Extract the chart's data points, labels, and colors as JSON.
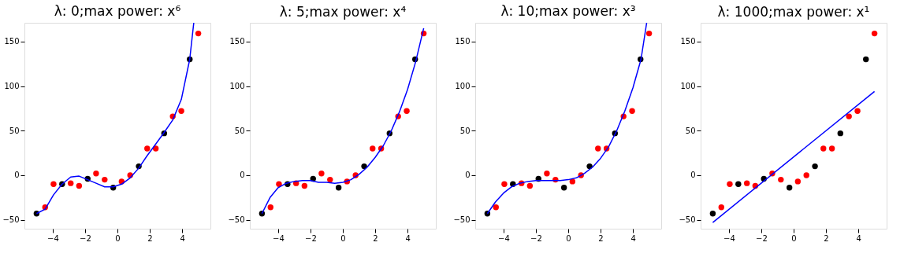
{
  "chart_data": [
    {
      "type": "scatter",
      "title": "λ: 0;max power: x⁶",
      "xlim": [
        -5.75,
        5.75
      ],
      "ylim": [
        -60,
        171
      ],
      "xticks": [
        -4,
        -2,
        0,
        2,
        4
      ],
      "yticks": [
        -50,
        0,
        50,
        100,
        150
      ],
      "grid": false,
      "series": [
        {
          "color": "#ff0000",
          "marker": "circle",
          "x": [
            -4.47,
            -3.95,
            -2.89,
            -2.37,
            -1.32,
            -0.79,
            0.26,
            0.79,
            1.84,
            2.37,
            3.42,
            3.95,
            5
          ],
          "values": [
            -36,
            -10,
            -9,
            -12,
            2,
            -5,
            -7,
            0,
            30,
            30,
            66,
            72,
            159
          ]
        },
        {
          "color": "#000000",
          "marker": "circle",
          "x": [
            -5,
            -3.42,
            -1.84,
            -0.26,
            1.32,
            2.89,
            4.47
          ],
          "values": [
            -43,
            -10,
            -4,
            -14,
            10,
            47,
            130
          ]
        },
        {
          "type": "line",
          "marker": "none",
          "line_style": "solid",
          "color": "#0000ff",
          "x": [
            -5,
            -4.47,
            -3.95,
            -3.42,
            -2.89,
            -2.37,
            -1.84,
            -1.32,
            -0.79,
            -0.26,
            0.26,
            0.79,
            1.32,
            1.84,
            2.37,
            2.89,
            3.42,
            3.95,
            4.47,
            4.72
          ],
          "values": [
            -43,
            -38,
            -22,
            -10,
            -2,
            -1,
            -5,
            -9,
            -13,
            -13,
            -10,
            -3,
            8,
            22,
            35,
            48,
            62,
            85,
            130,
            171
          ]
        }
      ]
    },
    {
      "type": "scatter",
      "title": "λ: 5;max power: x⁴",
      "xlim": [
        -5.75,
        5.75
      ],
      "ylim": [
        -60,
        171
      ],
      "xticks": [
        -4,
        -2,
        0,
        2,
        4
      ],
      "yticks": [
        -50,
        0,
        50,
        100,
        150
      ],
      "grid": false,
      "series": [
        {
          "color": "#ff0000",
          "marker": "circle",
          "x": [
            -4.47,
            -3.95,
            -2.89,
            -2.37,
            -1.32,
            -0.79,
            0.26,
            0.79,
            1.84,
            2.37,
            3.42,
            3.95,
            5
          ],
          "values": [
            -36,
            -10,
            -9,
            -12,
            2,
            -5,
            -7,
            0,
            30,
            30,
            66,
            72,
            159
          ]
        },
        {
          "color": "#000000",
          "marker": "circle",
          "x": [
            -5,
            -3.42,
            -1.84,
            -0.26,
            1.32,
            2.89,
            4.47
          ],
          "values": [
            -43,
            -10,
            -4,
            -14,
            10,
            47,
            130
          ]
        },
        {
          "type": "line",
          "marker": "none",
          "line_style": "solid",
          "color": "#0000ff",
          "x": [
            -5,
            -4.5,
            -4,
            -3.5,
            -3,
            -2.5,
            -2,
            -1.5,
            -1,
            -0.5,
            0,
            0.5,
            1,
            1.5,
            2,
            2.5,
            3,
            3.5,
            4,
            4.5,
            5
          ],
          "values": [
            -43,
            -25,
            -14,
            -9,
            -7,
            -6,
            -6,
            -8,
            -8,
            -9,
            -8,
            -5,
            1,
            9,
            20,
            33,
            50,
            71,
            96,
            127,
            165
          ]
        }
      ]
    },
    {
      "type": "scatter",
      "title": "λ: 10;max power: x³",
      "xlim": [
        -5.75,
        5.75
      ],
      "ylim": [
        -60,
        171
      ],
      "xticks": [
        -4,
        -2,
        0,
        2,
        4
      ],
      "yticks": [
        -50,
        0,
        50,
        100,
        150
      ],
      "grid": false,
      "series": [
        {
          "color": "#ff0000",
          "marker": "circle",
          "x": [
            -4.47,
            -3.95,
            -2.89,
            -2.37,
            -1.32,
            -0.79,
            0.26,
            0.79,
            1.84,
            2.37,
            3.42,
            3.95,
            5
          ],
          "values": [
            -36,
            -10,
            -9,
            -12,
            2,
            -5,
            -7,
            0,
            30,
            30,
            66,
            72,
            159
          ]
        },
        {
          "color": "#000000",
          "marker": "circle",
          "x": [
            -5,
            -3.42,
            -1.84,
            -0.26,
            1.32,
            2.89,
            4.47
          ],
          "values": [
            -43,
            -10,
            -4,
            -14,
            10,
            47,
            130
          ]
        },
        {
          "type": "line",
          "marker": "none",
          "line_style": "solid",
          "color": "#0000ff",
          "x": [
            -5,
            -4.5,
            -4,
            -3.5,
            -3,
            -2.5,
            -2,
            -1.5,
            -1,
            -0.5,
            0,
            0.5,
            1,
            1.5,
            2,
            2.5,
            3,
            3.5,
            4,
            4.5,
            4.85
          ],
          "values": [
            -43,
            -30,
            -20,
            -13,
            -9,
            -7,
            -6,
            -6,
            -6,
            -6,
            -5,
            -3,
            2,
            9,
            19,
            32,
            50,
            72,
            98,
            130,
            171
          ]
        }
      ]
    },
    {
      "type": "scatter",
      "title": "λ: 1000;max power: x¹",
      "xlim": [
        -5.75,
        5.75
      ],
      "ylim": [
        -60,
        171
      ],
      "xticks": [
        -4,
        -2,
        0,
        2,
        4
      ],
      "yticks": [
        -50,
        0,
        50,
        100,
        150
      ],
      "grid": false,
      "series": [
        {
          "color": "#ff0000",
          "marker": "circle",
          "x": [
            -4.47,
            -3.95,
            -2.89,
            -2.37,
            -1.32,
            -0.79,
            0.26,
            0.79,
            1.84,
            2.37,
            3.42,
            3.95,
            5
          ],
          "values": [
            -36,
            -10,
            -9,
            -12,
            2,
            -5,
            -7,
            0,
            30,
            30,
            66,
            72,
            159
          ]
        },
        {
          "color": "#000000",
          "marker": "circle",
          "x": [
            -5,
            -3.42,
            -1.84,
            -0.26,
            1.32,
            2.89,
            4.47
          ],
          "values": [
            -43,
            -10,
            -4,
            -14,
            10,
            47,
            130
          ]
        },
        {
          "type": "line",
          "marker": "none",
          "line_style": "solid",
          "color": "#0000ff",
          "x": [
            -5,
            5
          ],
          "values": [
            -53,
            94
          ]
        }
      ]
    }
  ]
}
